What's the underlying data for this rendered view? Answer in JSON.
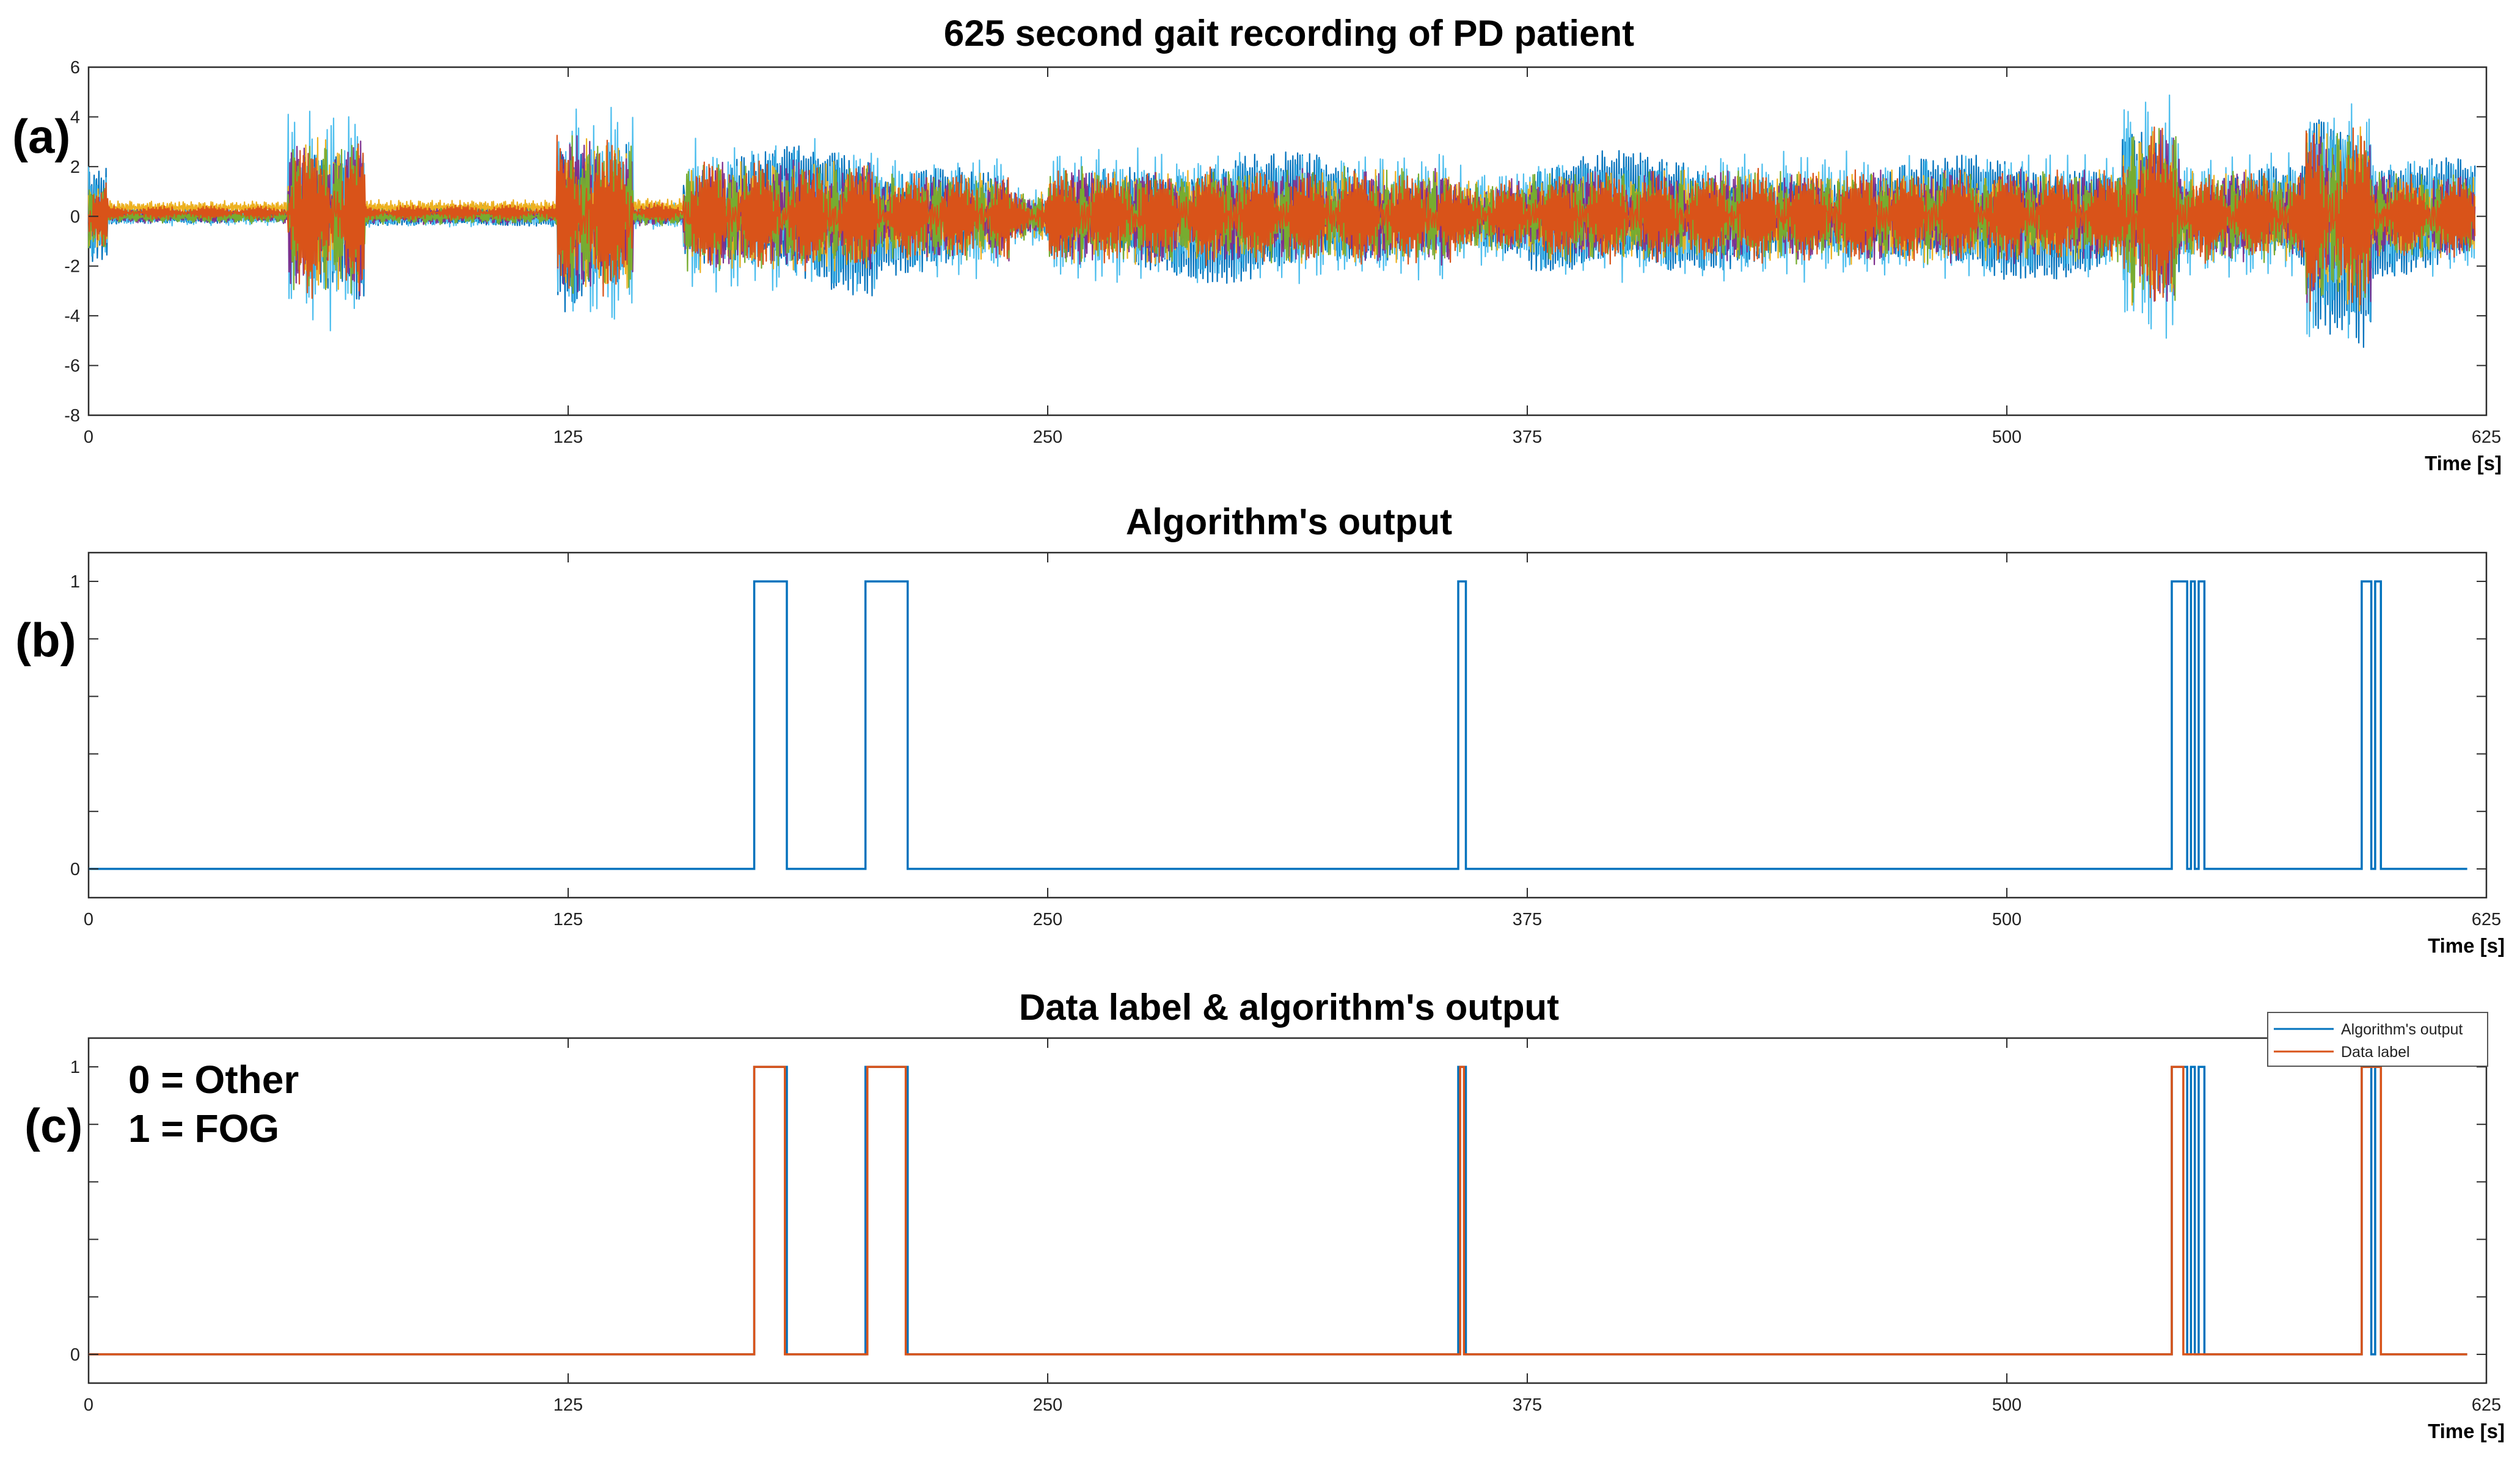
{
  "figure": {
    "panel_labels": [
      "(a)",
      "(b)",
      "(c)"
    ],
    "annotations": [
      "0 = Other",
      "1 = FOG"
    ]
  },
  "chart_data": [
    {
      "type": "line",
      "title": "625 second gait recording of PD patient",
      "xlabel": "Time [s]",
      "ylabel": "",
      "xlim": [
        0,
        625
      ],
      "ylim": [
        -8,
        6
      ],
      "x_ticks": [
        0,
        125,
        250,
        375,
        500,
        625
      ],
      "y_ticks": [
        6,
        4,
        2,
        0,
        -2,
        -4,
        -6,
        -8
      ],
      "series_colors": [
        "#0072bd",
        "#4dbeee",
        "#edb120",
        "#7e2f8e",
        "#77ac30",
        "#d95319"
      ],
      "segments": [
        {
          "start": 0,
          "end": 5,
          "amp": 1.8
        },
        {
          "start": 5,
          "end": 52,
          "amp": 0.35
        },
        {
          "start": 52,
          "end": 72,
          "amp": 4.0
        },
        {
          "start": 72,
          "end": 122,
          "amp": 0.4
        },
        {
          "start": 122,
          "end": 142,
          "amp": 4.1
        },
        {
          "start": 142,
          "end": 155,
          "amp": 0.5
        },
        {
          "start": 155,
          "end": 205,
          "amp": 2.8
        },
        {
          "start": 205,
          "end": 240,
          "amp": 2.2
        },
        {
          "start": 240,
          "end": 250,
          "amp": 1.2
        },
        {
          "start": 250,
          "end": 355,
          "amp": 2.4
        },
        {
          "start": 355,
          "end": 375,
          "amp": 1.8
        },
        {
          "start": 375,
          "end": 595,
          "amp": 2.3
        },
        {
          "start": 530,
          "end": 545,
          "amp": 4.5
        },
        {
          "start": 578,
          "end": 595,
          "amp": 4.6
        },
        {
          "start": 595,
          "end": 622,
          "amp": 2.2
        }
      ],
      "grid": false,
      "legend": "none"
    },
    {
      "type": "line",
      "title": "Algorithm's output",
      "xlabel": "Time [s]",
      "ylabel": "",
      "xlim": [
        0,
        625
      ],
      "ylim": [
        -0.1,
        1.1
      ],
      "x_ticks": [
        0,
        125,
        250,
        375,
        500,
        625
      ],
      "y_ticks": [
        0,
        1
      ],
      "series": [
        {
          "color": "#0072bd",
          "x": [
            0,
            173.5,
            173.5,
            182,
            182,
            202.5,
            202.5,
            213.5,
            213.5,
            357,
            357,
            359,
            359,
            543,
            543,
            547,
            547,
            548,
            548,
            549,
            549,
            550,
            550,
            551.5,
            551.5,
            592.5,
            592.5,
            595,
            595,
            596,
            596,
            597.5,
            597.5,
            620
          ],
          "y": [
            0,
            0,
            1,
            1,
            0,
            0,
            1,
            1,
            0,
            0,
            1,
            1,
            0,
            0,
            1,
            1,
            0,
            0,
            1,
            1,
            0,
            0,
            1,
            1,
            0,
            0,
            1,
            1,
            0,
            0,
            1,
            1,
            0,
            0
          ]
        }
      ],
      "grid": false,
      "legend": "none"
    },
    {
      "type": "line",
      "title": "Data label & algorithm's output",
      "xlabel": "Time [s]",
      "ylabel": "",
      "xlim": [
        0,
        625
      ],
      "ylim": [
        -0.1,
        1.1
      ],
      "x_ticks": [
        0,
        125,
        250,
        375,
        500,
        625
      ],
      "y_ticks": [
        0,
        1
      ],
      "series": [
        {
          "name": "Algorithm's output",
          "color": "#0072bd",
          "x": [
            0,
            173.5,
            173.5,
            182,
            182,
            202.5,
            202.5,
            213.5,
            213.5,
            357,
            357,
            359,
            359,
            543,
            543,
            547,
            547,
            548,
            548,
            549,
            549,
            550,
            550,
            551.5,
            551.5,
            592.5,
            592.5,
            595,
            595,
            596,
            596,
            597.5,
            597.5,
            620
          ],
          "y": [
            0,
            0,
            1,
            1,
            0,
            0,
            1,
            1,
            0,
            0,
            1,
            1,
            0,
            0,
            1,
            1,
            0,
            0,
            1,
            1,
            0,
            0,
            1,
            1,
            0,
            0,
            1,
            1,
            0,
            0,
            1,
            1,
            0,
            0
          ]
        },
        {
          "name": "Data label",
          "color": "#d95319",
          "x": [
            0,
            173.5,
            173.5,
            181.5,
            181.5,
            203,
            203,
            213,
            213,
            357.5,
            357.5,
            358.5,
            358.5,
            543,
            543,
            546,
            546,
            592.5,
            592.5,
            597.5,
            597.5,
            620
          ],
          "y": [
            0,
            0,
            1,
            1,
            0,
            0,
            1,
            1,
            0,
            0,
            1,
            1,
            0,
            0,
            1,
            1,
            0,
            0,
            1,
            1,
            0,
            0
          ]
        }
      ],
      "grid": false,
      "legend": "top-right"
    }
  ]
}
